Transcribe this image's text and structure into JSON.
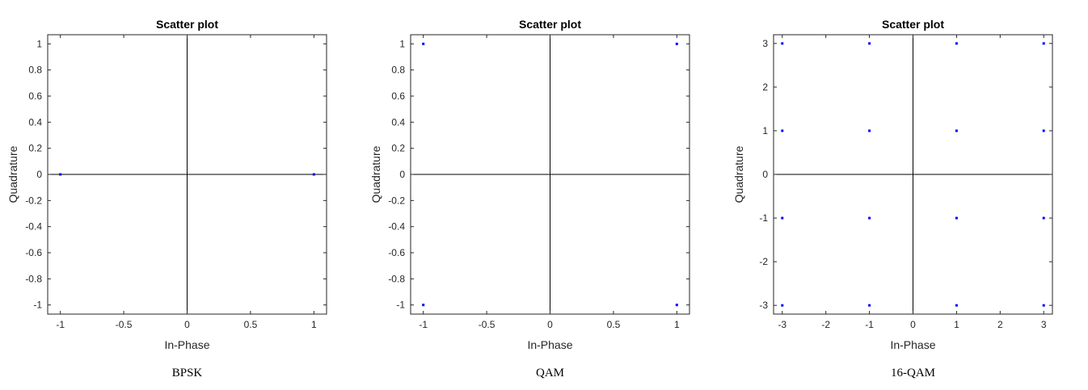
{
  "chart_data": [
    {
      "type": "scatter",
      "title": "Scatter plot",
      "xlabel": "In-Phase",
      "ylabel": "Quadrature",
      "caption": "BPSK",
      "xlim": [
        -1.1,
        1.1
      ],
      "ylim": [
        -1.07,
        1.07
      ],
      "xticks": [
        -1,
        -0.5,
        0,
        0.5,
        1
      ],
      "xtick_labels": [
        "-1",
        "-0.5",
        "0",
        "0.5",
        "1"
      ],
      "yticks": [
        -1,
        -0.8,
        -0.6,
        -0.4,
        -0.2,
        0,
        0.2,
        0.4,
        0.6,
        0.8,
        1
      ],
      "ytick_labels": [
        "-1",
        "-0.8",
        "-0.6",
        "-0.4",
        "-0.2",
        "0",
        "0.2",
        "0.4",
        "0.6",
        "0.8",
        "1"
      ],
      "grid": false,
      "axes_through_origin": true,
      "marker_color": "#0000ff",
      "points": [
        [
          -1,
          0
        ],
        [
          1,
          0
        ]
      ]
    },
    {
      "type": "scatter",
      "title": "Scatter plot",
      "xlabel": "In-Phase",
      "ylabel": "Quadrature",
      "caption": "QAM",
      "xlim": [
        -1.1,
        1.1
      ],
      "ylim": [
        -1.07,
        1.07
      ],
      "xticks": [
        -1,
        -0.5,
        0,
        0.5,
        1
      ],
      "xtick_labels": [
        "-1",
        "-0.5",
        "0",
        "0.5",
        "1"
      ],
      "yticks": [
        -1,
        -0.8,
        -0.6,
        -0.4,
        -0.2,
        0,
        0.2,
        0.4,
        0.6,
        0.8,
        1
      ],
      "ytick_labels": [
        "-1",
        "-0.8",
        "-0.6",
        "-0.4",
        "-0.2",
        "0",
        "0.2",
        "0.4",
        "0.6",
        "0.8",
        "1"
      ],
      "grid": false,
      "axes_through_origin": true,
      "marker_color": "#0000ff",
      "points": [
        [
          -1,
          1
        ],
        [
          1,
          1
        ],
        [
          -1,
          -1
        ],
        [
          1,
          -1
        ]
      ]
    },
    {
      "type": "scatter",
      "title": "Scatter plot",
      "xlabel": "In-Phase",
      "ylabel": "Quadrature",
      "caption": "16-QAM",
      "xlim": [
        -3.2,
        3.2
      ],
      "ylim": [
        -3.2,
        3.2
      ],
      "xticks": [
        -3,
        -2,
        -1,
        0,
        1,
        2,
        3
      ],
      "xtick_labels": [
        "-3",
        "-2",
        "-1",
        "0",
        "1",
        "2",
        "3"
      ],
      "yticks": [
        -3,
        -2,
        -1,
        0,
        1,
        2,
        3
      ],
      "ytick_labels": [
        "-3",
        "-2",
        "-1",
        "0",
        "1",
        "2",
        "3"
      ],
      "grid": false,
      "axes_through_origin": true,
      "marker_color": "#0000ff",
      "points": [
        [
          -3,
          3
        ],
        [
          -1,
          3
        ],
        [
          1,
          3
        ],
        [
          3,
          3
        ],
        [
          -3,
          1
        ],
        [
          -1,
          1
        ],
        [
          1,
          1
        ],
        [
          3,
          1
        ],
        [
          -3,
          -1
        ],
        [
          -1,
          -1
        ],
        [
          1,
          -1
        ],
        [
          3,
          -1
        ],
        [
          -3,
          -3
        ],
        [
          -1,
          -3
        ],
        [
          1,
          -3
        ],
        [
          3,
          -3
        ]
      ]
    }
  ]
}
